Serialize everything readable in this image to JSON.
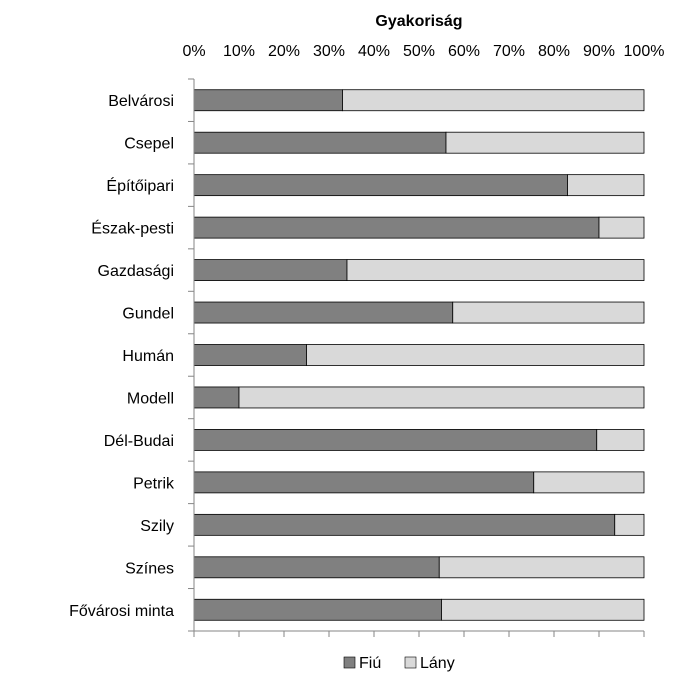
{
  "chart_data": {
    "type": "bar",
    "orientation": "horizontal",
    "stacked": "percent",
    "title": "",
    "xlabel": "Gyakoriság",
    "xlabel_position": "top",
    "xlim": [
      0,
      100
    ],
    "x_ticks": [
      "0%",
      "10%",
      "20%",
      "30%",
      "40%",
      "50%",
      "60%",
      "70%",
      "80%",
      "90%",
      "100%"
    ],
    "categories": [
      "Belvárosi",
      "Csepel",
      "Építőipari",
      "Észak-pesti",
      "Gazdasági",
      "Gundel",
      "Humán",
      "Modell",
      "Dél-Budai",
      "Petrik",
      "Szily",
      "Színes",
      "Fővárosi minta"
    ],
    "series": [
      {
        "name": "Fiú",
        "color": "#808080",
        "values": [
          33,
          56,
          83,
          90,
          34,
          57.5,
          25,
          10,
          89.5,
          75.5,
          93.5,
          54.5,
          55
        ]
      },
      {
        "name": "Lány",
        "color": "#d9d9d9",
        "values": [
          67,
          44,
          17,
          10,
          66,
          42.5,
          75,
          90,
          10.5,
          24.5,
          6.5,
          45.5,
          45
        ]
      }
    ],
    "grid": false,
    "legend": "bottom"
  }
}
